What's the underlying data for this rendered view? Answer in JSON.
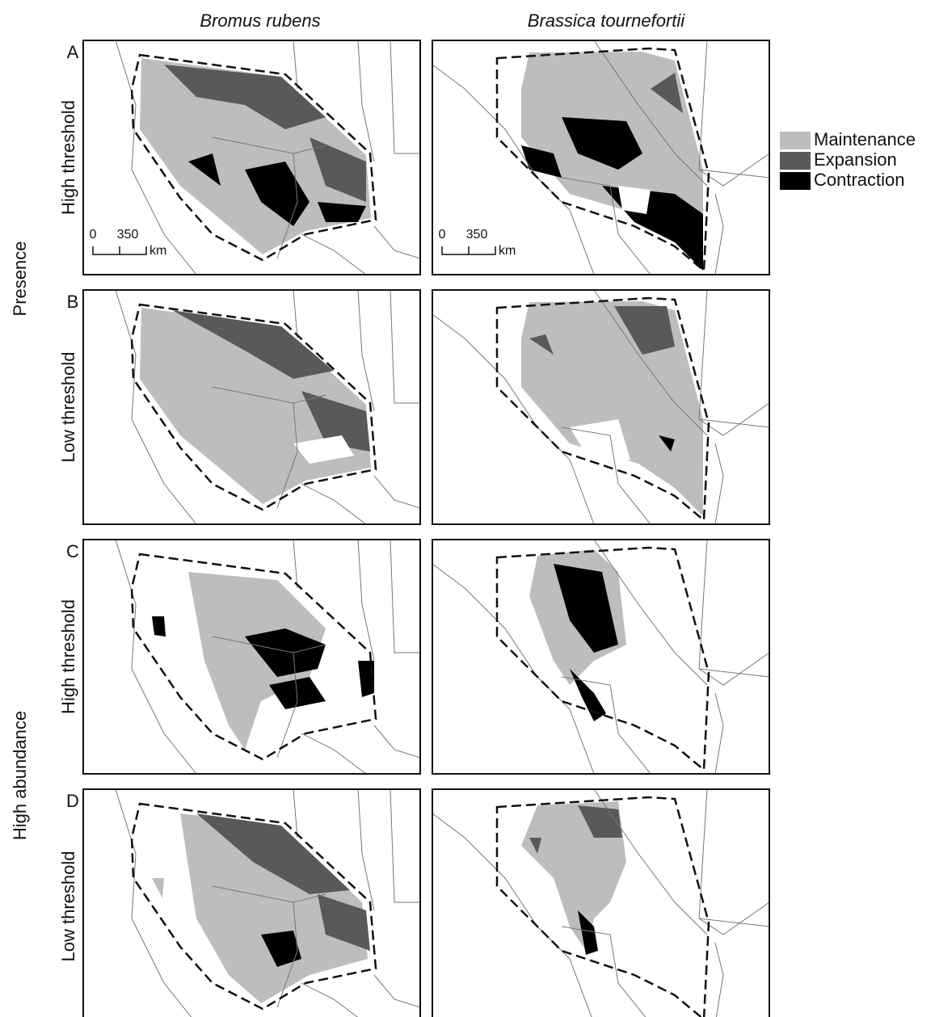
{
  "columns": [
    "Bromus rubens",
    "Brassica tournefortii"
  ],
  "groups": [
    "Presence",
    "High abundance"
  ],
  "rows": [
    {
      "letter": "A",
      "threshold": "High threshold"
    },
    {
      "letter": "B",
      "threshold": "Low threshold"
    },
    {
      "letter": "C",
      "threshold": "High threshold"
    },
    {
      "letter": "D",
      "threshold": "Low threshold"
    }
  ],
  "legend": [
    "Maintenance",
    "Expansion",
    "Contraction"
  ],
  "scale_bar": {
    "start": 0,
    "end": 350,
    "unit": "km"
  }
}
